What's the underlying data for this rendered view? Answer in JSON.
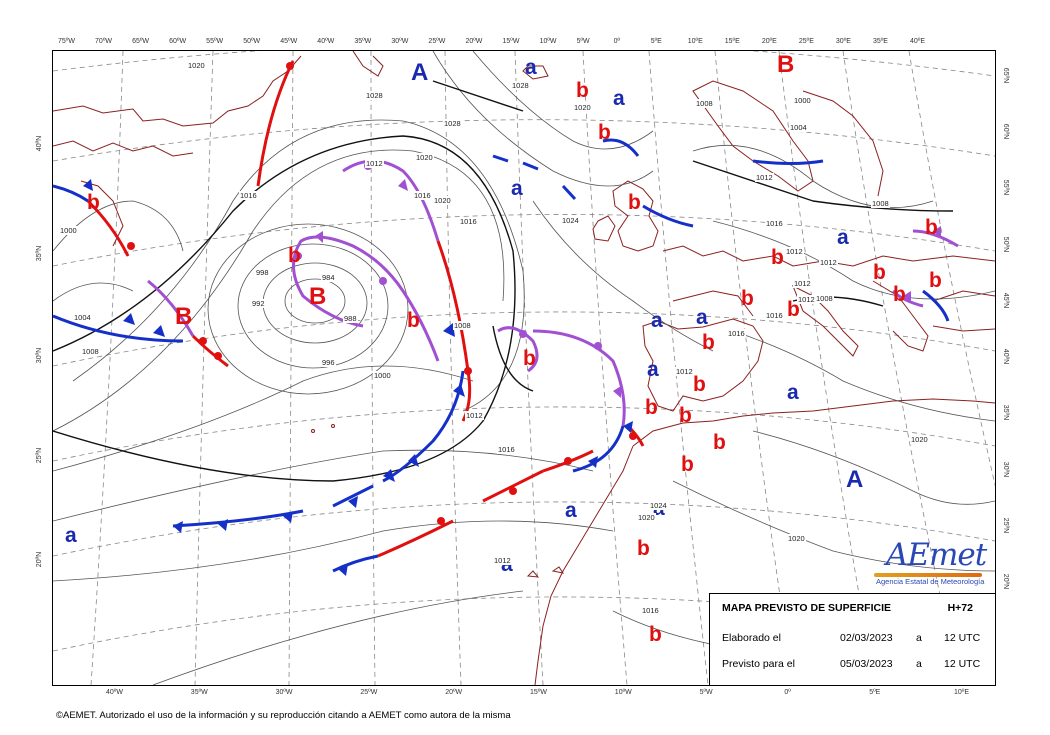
{
  "map": {
    "top_longitudes": [
      "75ºW",
      "70ºW",
      "65ºW",
      "60ºW",
      "55ºW",
      "50ºW",
      "45ºW",
      "40ºW",
      "35ºW",
      "30ºW",
      "25ºW",
      "20ºW",
      "15ºW",
      "10ºW",
      "5ºW",
      "0º",
      "5ºE",
      "10ºE",
      "15ºE",
      "20ºE",
      "25ºE",
      "30ºE",
      "35ºE",
      "40ºE"
    ],
    "bottom_longitudes": [
      "40ºW",
      "35ºW",
      "30ºW",
      "25ºW",
      "20ºW",
      "15ºW",
      "10ºW",
      "5ºW",
      "0º",
      "5ºE",
      "10ºE"
    ],
    "left_latitudes": [
      "40ºN",
      "35ºN",
      "30ºN",
      "25ºN",
      "20ºN"
    ],
    "right_latitudes": [
      "65ºN",
      "60ºN",
      "55ºN",
      "50ºN",
      "45ºN",
      "40ºN",
      "35ºN",
      "30ºN",
      "25ºN",
      "20ºN"
    ],
    "systems": [
      {
        "label": "A",
        "kind": "high-center"
      },
      {
        "label": "A",
        "kind": "high-center"
      },
      {
        "label": "B",
        "kind": "low-center"
      },
      {
        "label": "B",
        "kind": "low-center"
      },
      {
        "label": "B",
        "kind": "low-center"
      },
      {
        "label": "a",
        "kind": "relative-high"
      },
      {
        "label": "a",
        "kind": "relative-high"
      },
      {
        "label": "a",
        "kind": "relative-high"
      },
      {
        "label": "a",
        "kind": "relative-high"
      },
      {
        "label": "a",
        "kind": "relative-high"
      },
      {
        "label": "a",
        "kind": "relative-high"
      },
      {
        "label": "a",
        "kind": "relative-high"
      },
      {
        "label": "a",
        "kind": "relative-high"
      },
      {
        "label": "a",
        "kind": "relative-high"
      },
      {
        "label": "a",
        "kind": "relative-high"
      },
      {
        "label": "a",
        "kind": "relative-high"
      },
      {
        "label": "a",
        "kind": "relative-high"
      },
      {
        "label": "b",
        "kind": "relative-low"
      },
      {
        "label": "b",
        "kind": "relative-low"
      },
      {
        "label": "b",
        "kind": "relative-low"
      },
      {
        "label": "b",
        "kind": "relative-low"
      },
      {
        "label": "b",
        "kind": "relative-low"
      },
      {
        "label": "b",
        "kind": "relative-low"
      },
      {
        "label": "b",
        "kind": "relative-low"
      },
      {
        "label": "b",
        "kind": "relative-low"
      },
      {
        "label": "b",
        "kind": "relative-low"
      },
      {
        "label": "b",
        "kind": "relative-low"
      },
      {
        "label": "b",
        "kind": "relative-low"
      },
      {
        "label": "b",
        "kind": "relative-low"
      },
      {
        "label": "b",
        "kind": "relative-low"
      },
      {
        "label": "b",
        "kind": "relative-low"
      },
      {
        "label": "b",
        "kind": "relative-low"
      },
      {
        "label": "b",
        "kind": "relative-low"
      },
      {
        "label": "b",
        "kind": "relative-low"
      },
      {
        "label": "b",
        "kind": "relative-low"
      },
      {
        "label": "b",
        "kind": "relative-low"
      },
      {
        "label": "b",
        "kind": "relative-low"
      },
      {
        "label": "b",
        "kind": "relative-low"
      },
      {
        "label": "b",
        "kind": "relative-low"
      }
    ],
    "isobar_labels": [
      "1020",
      "1016",
      "1000",
      "1004",
      "1008",
      "998",
      "992",
      "984",
      "988",
      "996",
      "1000",
      "1012",
      "1028",
      "1028",
      "1028",
      "1020",
      "1024",
      "1012",
      "1020",
      "1016",
      "1016",
      "1012",
      "1004",
      "1008",
      "1000",
      "1008",
      "1012",
      "1016",
      "1012",
      "1012",
      "1008",
      "1016",
      "1016",
      "1020",
      "1020",
      "1024",
      "1020",
      "1016",
      "1020",
      "1012",
      "1016",
      "1008",
      "1012",
      "1012"
    ],
    "colors": {
      "high": "#1a2ab0",
      "low": "#e01010",
      "cold_front": "#1530c8",
      "warm_front": "#e01010",
      "occluded_front": "#a050d0",
      "coastline": "#8b2020",
      "isobar": "#555555",
      "isobar_bold": "#111111",
      "graticule": "#888888"
    }
  },
  "info_box": {
    "title": "MAPA PREVISTO DE SUPERFICIE",
    "horizon": "H+72",
    "rows": [
      {
        "label": "Elaborado el",
        "date": "02/03/2023",
        "sep": "a",
        "time": "12 UTC"
      },
      {
        "label": "Previsto para el",
        "date": "05/03/2023",
        "sep": "a",
        "time": "12 UTC"
      }
    ]
  },
  "logo": {
    "name": "AEmet",
    "subtitle": "Agencia Estatal de Meteorología"
  },
  "copyright": "©AEMET. Autorizado el uso de la información y su reproducción citando a AEMET como autora de la misma"
}
